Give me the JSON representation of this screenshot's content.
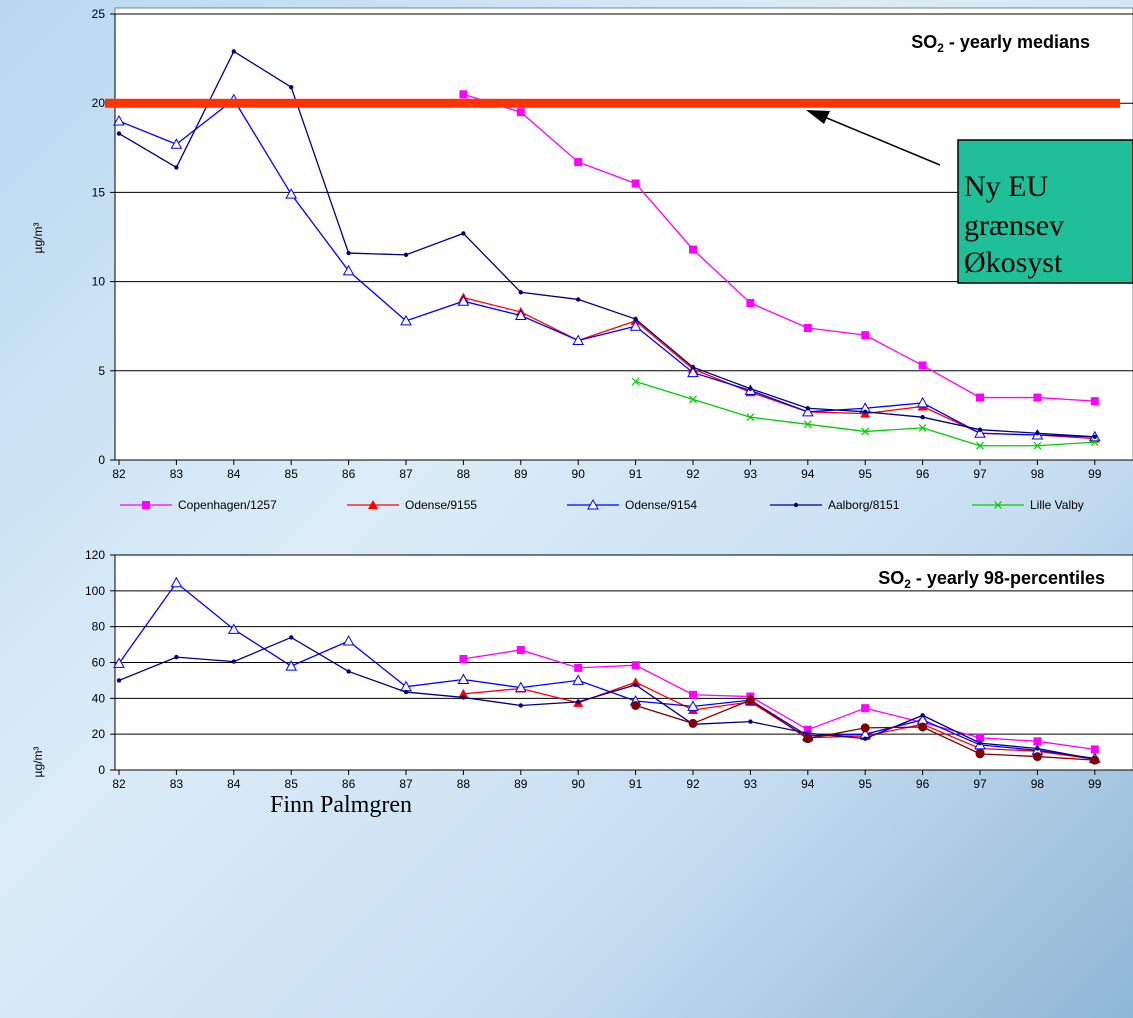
{
  "footer": {
    "author": "Finn Palmgren"
  },
  "callout": {
    "lines": [
      "Ny EU",
      "grænsev",
      "Økosyst"
    ],
    "fill": "#1fbf9a",
    "limit_line_color": "#ff3300"
  },
  "legend": [
    {
      "name": "Copenhagen/1257",
      "color": "#ff00ff",
      "marker": "square"
    },
    {
      "name": "Odense/9155",
      "color": "#ff0000",
      "marker": "triangle"
    },
    {
      "name": "Odense/9154",
      "color": "#0000ff",
      "marker": "open-triangle"
    },
    {
      "name": "Aalborg/8151",
      "color": "#000080",
      "marker": "dot"
    },
    {
      "name": "Lille Valby",
      "color": "#00cc00",
      "marker": "x"
    }
  ],
  "chart_data": [
    {
      "type": "line",
      "title_main": "SO",
      "title_sub": "2",
      "title_rest": " - yearly medians",
      "ylabel": "µg/m³",
      "x": [
        "82",
        "83",
        "84",
        "85",
        "86",
        "87",
        "88",
        "89",
        "90",
        "91",
        "92",
        "93",
        "94",
        "95",
        "96",
        "97",
        "98",
        "99"
      ],
      "ylim": [
        0,
        25
      ],
      "yticks": [
        0,
        5,
        10,
        15,
        20,
        25
      ],
      "grid": true,
      "reference_line": 20,
      "series": [
        {
          "name": "Copenhagen/1257",
          "values": [
            null,
            null,
            null,
            null,
            null,
            null,
            20.5,
            19.5,
            16.7,
            15.5,
            11.8,
            8.8,
            7.4,
            7.0,
            5.3,
            3.5,
            3.5,
            3.3
          ]
        },
        {
          "name": "Odense/9155",
          "values": [
            null,
            null,
            null,
            null,
            null,
            null,
            9.1,
            8.3,
            6.7,
            7.8,
            5.1,
            3.8,
            2.7,
            2.6,
            3.0,
            1.5,
            1.4,
            1.2
          ]
        },
        {
          "name": "Odense/9154",
          "values": [
            19.0,
            17.7,
            20.2,
            14.9,
            10.6,
            7.8,
            8.9,
            8.1,
            6.7,
            7.5,
            4.9,
            3.9,
            2.7,
            2.9,
            3.2,
            1.5,
            1.4,
            1.3
          ]
        },
        {
          "name": "Aalborg/8151",
          "values": [
            18.3,
            16.4,
            22.9,
            20.9,
            11.6,
            11.5,
            12.7,
            9.4,
            9.0,
            7.9,
            5.2,
            4.0,
            2.9,
            2.7,
            2.4,
            1.7,
            1.5,
            1.3
          ]
        },
        {
          "name": "Lille Valby",
          "values": [
            null,
            null,
            null,
            null,
            null,
            null,
            null,
            null,
            null,
            4.4,
            3.4,
            2.4,
            2.0,
            1.6,
            1.8,
            0.8,
            0.8,
            1.0
          ]
        }
      ]
    },
    {
      "type": "line",
      "title_main": "SO",
      "title_sub": "2",
      "title_rest": " - yearly 98-percentiles",
      "ylabel": "µg/m³",
      "x": [
        "82",
        "83",
        "84",
        "85",
        "86",
        "87",
        "88",
        "89",
        "90",
        "91",
        "92",
        "93",
        "94",
        "95",
        "96",
        "97",
        "98",
        "99"
      ],
      "ylim": [
        0,
        120
      ],
      "yticks": [
        0,
        20,
        40,
        60,
        80,
        100,
        120
      ],
      "grid": true,
      "series": [
        {
          "name": "Copenhagen/1257",
          "color": "#ff00ff",
          "marker": "square",
          "values": [
            null,
            null,
            null,
            null,
            null,
            null,
            62,
            67,
            57,
            58.5,
            42,
            41,
            22.5,
            34.5,
            26.5,
            18,
            16,
            11.5
          ]
        },
        {
          "name": "Odense/9155",
          "color": "#ff0000",
          "marker": "triangle",
          "values": [
            null,
            null,
            null,
            null,
            null,
            null,
            42.5,
            45.5,
            37.5,
            49,
            33.5,
            38,
            18,
            19,
            25.5,
            12,
            10.5,
            6
          ]
        },
        {
          "name": "Odense/9154",
          "color": "#0000ff",
          "marker": "open-triangle",
          "values": [
            59.5,
            104.5,
            78.5,
            58,
            72,
            46.5,
            50.5,
            46,
            50,
            38.5,
            35.5,
            39,
            19,
            20,
            28,
            14,
            11,
            6.5
          ]
        },
        {
          "name": "Aalborg/8151",
          "color": "#000080",
          "marker": "dot",
          "values": [
            50,
            63,
            60.5,
            74,
            55,
            43.5,
            40.5,
            36,
            38,
            47.5,
            25.5,
            27,
            20.5,
            17.5,
            30.5,
            15,
            12,
            6
          ]
        },
        {
          "name": "",
          "color": "#800000",
          "marker": "filled-circle",
          "values": [
            null,
            null,
            null,
            null,
            null,
            null,
            null,
            null,
            null,
            36,
            26,
            39,
            17.5,
            23.5,
            24,
            9,
            7.5,
            5.5
          ]
        }
      ]
    }
  ]
}
